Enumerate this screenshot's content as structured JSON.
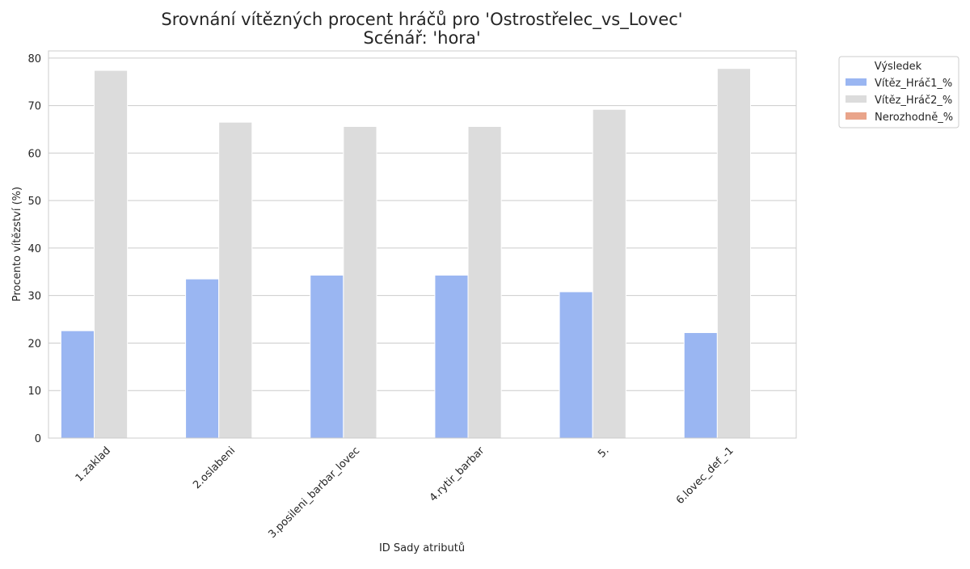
{
  "chart_data": {
    "type": "bar",
    "title": "Srovnání vítězných procent hráčů pro 'Ostrostřelec_vs_Lovec'",
    "subtitle": "Scénář: 'hora'",
    "xlabel": "ID Sady atributů",
    "ylabel": "Procento vítězství (%)",
    "categories": [
      "1.zaklad",
      "2.oslabeni",
      "3.posileni_barbar_lovec",
      "4.rytir_barbar",
      "5.",
      "6.lovec_def_-1"
    ],
    "series": [
      {
        "name": "Vítěz_Hráč1_%",
        "color": "#9ab6f2",
        "values": [
          22.6,
          33.5,
          34.3,
          34.3,
          30.8,
          22.2
        ]
      },
      {
        "name": "Vítěz_Hráč2_%",
        "color": "#dcdcdc",
        "values": [
          77.4,
          66.5,
          65.6,
          65.6,
          69.2,
          77.8
        ]
      },
      {
        "name": "Nerozhodně_%",
        "color": "#e9a48a",
        "values": [
          0,
          0,
          0,
          0,
          0,
          0
        ]
      }
    ],
    "legend_title": "Výsledek",
    "legend_position": "outside top-right",
    "ylim": [
      0,
      81.5
    ],
    "yticks": [
      0,
      10,
      20,
      30,
      40,
      50,
      60,
      70,
      80
    ],
    "grid": "horizontal",
    "xtick_rotation": 45
  }
}
